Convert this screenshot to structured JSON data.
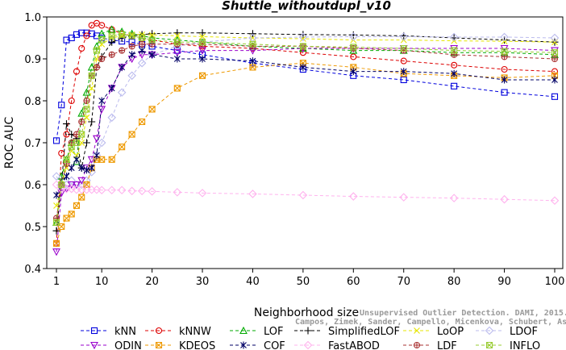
{
  "chart_data": {
    "type": "line",
    "title": "Shuttle_withoutdupl_v10",
    "xlabel": "Neighborhood size",
    "ylabel": "ROC AUC",
    "xlim": [
      0,
      100
    ],
    "ylim": [
      0.4,
      1.0
    ],
    "xticks": [
      1,
      10,
      20,
      30,
      40,
      50,
      60,
      70,
      80,
      90,
      100
    ],
    "yticks": [
      0.4,
      0.5,
      0.6,
      0.7,
      0.8,
      0.9,
      1.0
    ],
    "grid": false,
    "legend_position": "bottom",
    "watermark": [
      "Unsupervised Outlier Detection. DAMI, 2015.",
      "Campos, Zimek, Sander, Campello, Micenkova, Schubert, Assent, Houle"
    ],
    "x_points": [
      1,
      2,
      3,
      4,
      5,
      6,
      7,
      8,
      9,
      10,
      12,
      14,
      16,
      18,
      20,
      25,
      30,
      40,
      50,
      60,
      70,
      80,
      90,
      100
    ],
    "series": [
      {
        "name": "kNN",
        "color": "#0000dd",
        "marker": "square",
        "values": [
          0.705,
          0.79,
          0.945,
          0.95,
          0.958,
          0.962,
          0.962,
          0.96,
          0.955,
          0.95,
          0.945,
          0.942,
          0.94,
          0.935,
          0.93,
          0.92,
          0.91,
          0.89,
          0.875,
          0.86,
          0.85,
          0.835,
          0.82,
          0.81
        ]
      },
      {
        "name": "kNNW",
        "color": "#dd0000",
        "marker": "circle",
        "values": [
          0.46,
          0.675,
          0.72,
          0.8,
          0.87,
          0.925,
          0.955,
          0.98,
          0.985,
          0.98,
          0.97,
          0.96,
          0.955,
          0.95,
          0.945,
          0.935,
          0.93,
          0.925,
          0.915,
          0.905,
          0.895,
          0.885,
          0.875,
          0.87
        ]
      },
      {
        "name": "LOF",
        "color": "#00aa00",
        "marker": "triangle",
        "values": [
          0.51,
          0.62,
          0.66,
          0.7,
          0.655,
          0.77,
          0.82,
          0.88,
          0.93,
          0.96,
          0.97,
          0.965,
          0.96,
          0.955,
          0.95,
          0.945,
          0.94,
          0.93,
          0.925,
          0.92,
          0.92,
          0.915,
          0.915,
          0.91
        ]
      },
      {
        "name": "SimplifiedLOF",
        "color": "#000000",
        "marker": "plus",
        "values": [
          0.49,
          0.6,
          0.745,
          0.72,
          0.71,
          0.64,
          0.7,
          0.75,
          0.88,
          0.905,
          0.94,
          0.95,
          0.955,
          0.958,
          0.96,
          0.962,
          0.962,
          0.96,
          0.958,
          0.957,
          0.955,
          0.95,
          0.945,
          0.94
        ]
      },
      {
        "name": "LoOP",
        "color": "#e6e600",
        "marker": "x",
        "values": [
          0.55,
          0.6,
          0.64,
          0.68,
          0.67,
          0.7,
          0.76,
          0.83,
          0.9,
          0.935,
          0.95,
          0.955,
          0.958,
          0.958,
          0.957,
          0.955,
          0.953,
          0.95,
          0.948,
          0.945,
          0.945,
          0.943,
          0.942,
          0.94
        ]
      },
      {
        "name": "LDOF",
        "color": "#bbbbee",
        "marker": "diamond",
        "values": [
          0.62,
          0.6,
          0.6,
          0.61,
          0.6,
          0.6,
          0.61,
          0.63,
          0.67,
          0.7,
          0.76,
          0.82,
          0.86,
          0.89,
          0.91,
          0.93,
          0.94,
          0.95,
          0.952,
          0.953,
          0.953,
          0.952,
          0.952,
          0.95
        ]
      },
      {
        "name": "ODIN",
        "color": "#9900cc",
        "marker": "triangle-down",
        "values": [
          0.44,
          0.58,
          0.59,
          0.6,
          0.6,
          0.61,
          0.64,
          0.66,
          0.71,
          0.78,
          0.83,
          0.88,
          0.9,
          0.91,
          0.91,
          0.915,
          0.92,
          0.92,
          0.925,
          0.925,
          0.925,
          0.925,
          0.925,
          0.92
        ]
      },
      {
        "name": "KDEOS",
        "color": "#ee9900",
        "marker": "square-x",
        "values": [
          0.46,
          0.5,
          0.52,
          0.53,
          0.55,
          0.57,
          0.6,
          0.64,
          0.66,
          0.66,
          0.66,
          0.69,
          0.72,
          0.75,
          0.78,
          0.83,
          0.86,
          0.88,
          0.89,
          0.88,
          0.865,
          0.86,
          0.855,
          0.86
        ]
      },
      {
        "name": "COF",
        "color": "#000066",
        "marker": "asterisk",
        "values": [
          0.575,
          0.6,
          0.62,
          0.64,
          0.66,
          0.64,
          0.635,
          0.64,
          0.67,
          0.8,
          0.83,
          0.88,
          0.91,
          0.92,
          0.91,
          0.9,
          0.9,
          0.895,
          0.88,
          0.87,
          0.87,
          0.865,
          0.85,
          0.85
        ]
      },
      {
        "name": "FastABOD",
        "color": "#ffb3ee",
        "marker": "diamond",
        "values": [
          0.6,
          0.59,
          0.59,
          0.59,
          0.588,
          0.588,
          0.588,
          0.588,
          0.588,
          0.587,
          0.587,
          0.587,
          0.585,
          0.585,
          0.584,
          0.582,
          0.58,
          0.578,
          0.575,
          0.572,
          0.57,
          0.568,
          0.565,
          0.562
        ]
      },
      {
        "name": "LDF",
        "color": "#aa3333",
        "marker": "circle-plus",
        "values": [
          0.52,
          0.6,
          0.65,
          0.7,
          0.72,
          0.75,
          0.8,
          0.86,
          0.88,
          0.9,
          0.91,
          0.92,
          0.93,
          0.935,
          0.935,
          0.935,
          0.935,
          0.93,
          0.93,
          0.925,
          0.92,
          0.91,
          0.905,
          0.9
        ]
      },
      {
        "name": "INFLO",
        "color": "#99cc33",
        "marker": "square-x",
        "values": [
          0.51,
          0.6,
          0.66,
          0.69,
          0.7,
          0.72,
          0.78,
          0.86,
          0.92,
          0.945,
          0.955,
          0.958,
          0.955,
          0.95,
          0.945,
          0.94,
          0.94,
          0.935,
          0.93,
          0.928,
          0.925,
          0.92,
          0.918,
          0.915
        ]
      }
    ]
  }
}
